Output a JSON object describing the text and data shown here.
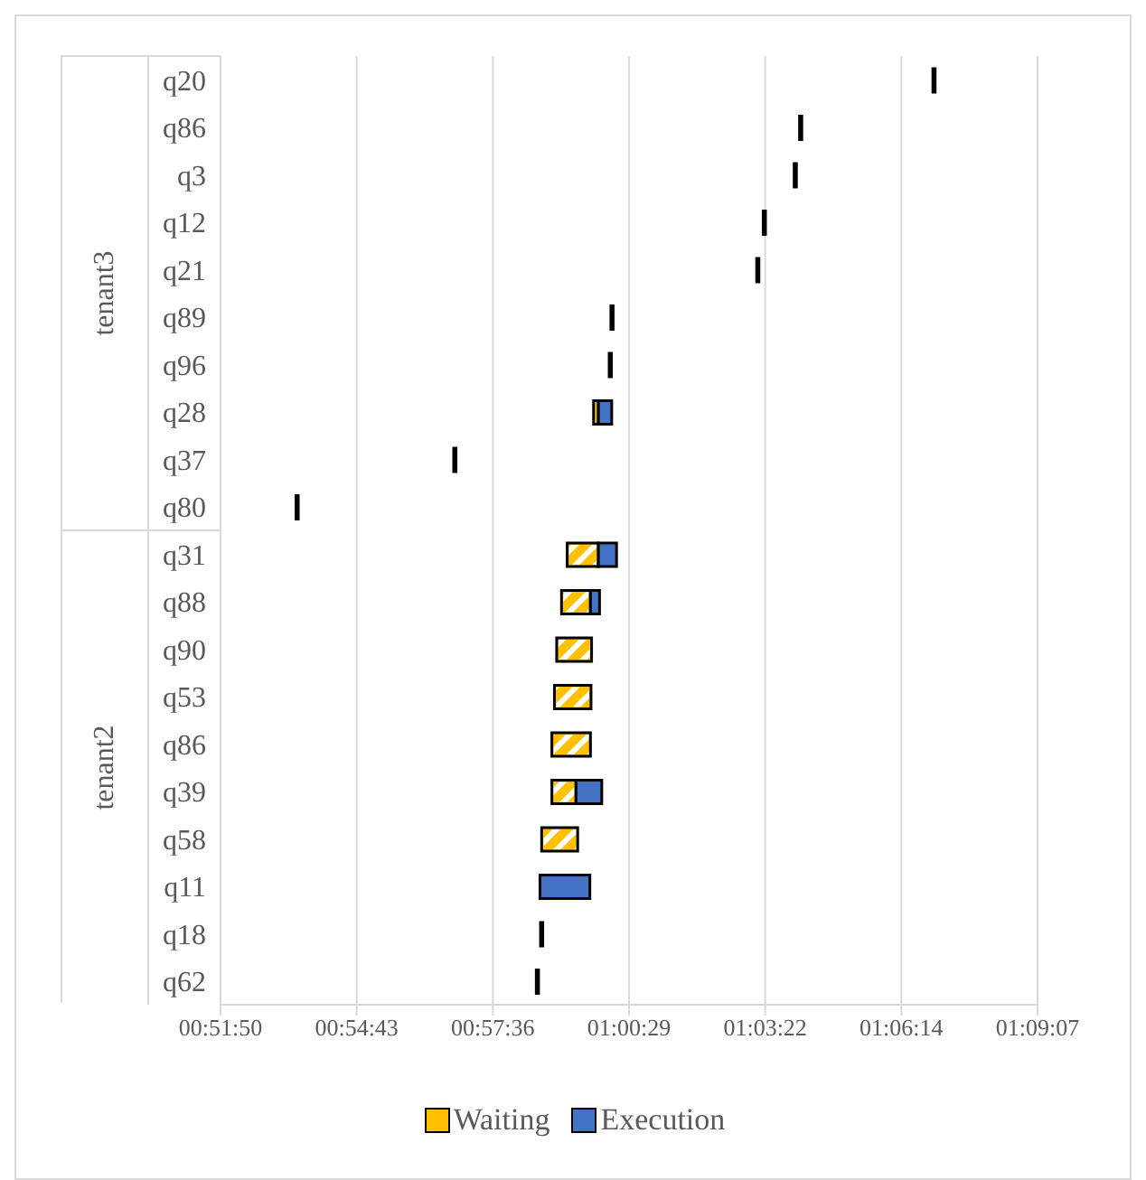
{
  "chart_data": {
    "type": "bar",
    "orientation": "horizontal",
    "categories": [
      "q20",
      "q86",
      "q3",
      "q12",
      "q21",
      "q89",
      "q96",
      "q28",
      "q37",
      "q80",
      "q31",
      "q88",
      "q90",
      "q53",
      "q86",
      "q39",
      "q58",
      "q11",
      "q18",
      "q62"
    ],
    "series": [
      {
        "name": "Waiting",
        "color": "#ffc000",
        "base": [
          null,
          null,
          null,
          null,
          null,
          null,
          null,
          0.9955,
          null,
          null,
          0.9862,
          0.9842,
          0.9825,
          0.9817,
          0.9808,
          0.9808,
          0.9772,
          null,
          null,
          null
        ],
        "values": [
          null,
          null,
          null,
          null,
          null,
          null,
          null,
          0.0017,
          null,
          null,
          0.011,
          0.0102,
          0.0123,
          0.0129,
          0.0136,
          0.0085,
          0.0127,
          null,
          null,
          null
        ]
      },
      {
        "name": "Execution",
        "color": "#4472c4",
        "base": [
          1.1151,
          1.0681,
          1.0662,
          1.0553,
          1.053,
          1.0016,
          1.001,
          0.9972,
          0.9462,
          0.8906,
          0.9972,
          0.9944,
          null,
          null,
          null,
          0.9893,
          null,
          0.9766,
          0.9768,
          0.9753
        ],
        "values": [
          0.0008,
          0.0008,
          0.0008,
          0.0008,
          0.0008,
          0.0008,
          0.0008,
          0.0047,
          0.0008,
          0.0008,
          0.0064,
          0.0032,
          null,
          null,
          null,
          0.0091,
          null,
          0.0176,
          0.0008,
          0.0008
        ]
      }
    ],
    "xlim": [
      0.864,
      1.152
    ],
    "xticks": [
      {
        "value": 0.864,
        "label": "00:51:50"
      },
      {
        "value": 0.912,
        "label": "00:54:43"
      },
      {
        "value": 0.96,
        "label": "00:57:36"
      },
      {
        "value": 1.008,
        "label": "01:00:29"
      },
      {
        "value": 1.056,
        "label": "01:03:22"
      },
      {
        "value": 1.104,
        "label": "01:06:14"
      },
      {
        "value": 1.152,
        "label": "01:09:07"
      }
    ],
    "annotations": [
      "tenant3",
      "tenant2"
    ],
    "grid": "x",
    "legend": "bottom"
  }
}
